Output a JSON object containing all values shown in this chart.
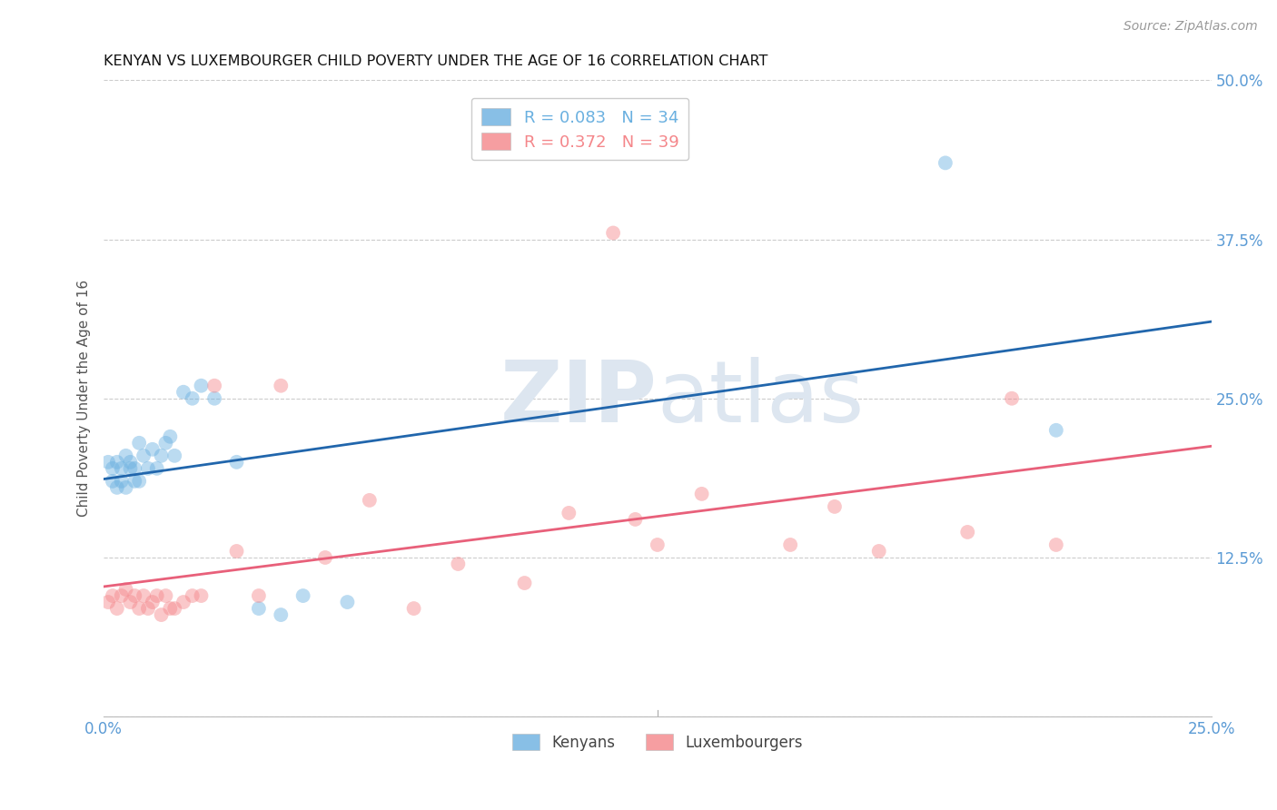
{
  "title": "KENYAN VS LUXEMBOURGER CHILD POVERTY UNDER THE AGE OF 16 CORRELATION CHART",
  "source": "Source: ZipAtlas.com",
  "ylabel": "Child Poverty Under the Age of 16",
  "xlim": [
    0.0,
    0.25
  ],
  "ylim": [
    0.0,
    0.5
  ],
  "xticks": [
    0.0,
    0.05,
    0.1,
    0.15,
    0.2,
    0.25
  ],
  "yticks": [
    0.0,
    0.125,
    0.25,
    0.375,
    0.5
  ],
  "ytick_labels": [
    "",
    "12.5%",
    "25.0%",
    "37.5%",
    "50.0%"
  ],
  "xtick_labels": [
    "0.0%",
    "",
    "",
    "",
    "",
    "25.0%"
  ],
  "legend_entries": [
    {
      "label": "R = 0.083   N = 34",
      "color": "#6ab0e0"
    },
    {
      "label": "R = 0.372   N = 39",
      "color": "#f4868a"
    }
  ],
  "kenyan_x": [
    0.001,
    0.002,
    0.002,
    0.003,
    0.003,
    0.004,
    0.004,
    0.005,
    0.005,
    0.006,
    0.006,
    0.007,
    0.007,
    0.008,
    0.008,
    0.009,
    0.01,
    0.011,
    0.012,
    0.013,
    0.014,
    0.015,
    0.016,
    0.018,
    0.02,
    0.022,
    0.025,
    0.03,
    0.035,
    0.04,
    0.045,
    0.055,
    0.19,
    0.215
  ],
  "kenyan_y": [
    0.2,
    0.195,
    0.185,
    0.2,
    0.18,
    0.185,
    0.195,
    0.18,
    0.205,
    0.195,
    0.2,
    0.195,
    0.185,
    0.185,
    0.215,
    0.205,
    0.195,
    0.21,
    0.195,
    0.205,
    0.215,
    0.22,
    0.205,
    0.255,
    0.25,
    0.26,
    0.25,
    0.2,
    0.085,
    0.08,
    0.095,
    0.09,
    0.435,
    0.225
  ],
  "luxembourger_x": [
    0.001,
    0.002,
    0.003,
    0.004,
    0.005,
    0.006,
    0.007,
    0.008,
    0.009,
    0.01,
    0.011,
    0.012,
    0.013,
    0.014,
    0.015,
    0.016,
    0.018,
    0.02,
    0.022,
    0.025,
    0.03,
    0.035,
    0.04,
    0.06,
    0.07,
    0.095,
    0.105,
    0.12,
    0.125,
    0.135,
    0.155,
    0.165,
    0.175,
    0.195,
    0.205,
    0.215,
    0.115,
    0.08,
    0.05
  ],
  "luxembourger_y": [
    0.09,
    0.095,
    0.085,
    0.095,
    0.1,
    0.09,
    0.095,
    0.085,
    0.095,
    0.085,
    0.09,
    0.095,
    0.08,
    0.095,
    0.085,
    0.085,
    0.09,
    0.095,
    0.095,
    0.26,
    0.13,
    0.095,
    0.26,
    0.17,
    0.085,
    0.105,
    0.16,
    0.155,
    0.135,
    0.175,
    0.135,
    0.165,
    0.13,
    0.145,
    0.25,
    0.135,
    0.38,
    0.12,
    0.125
  ],
  "kenyan_color": "#6ab0e0",
  "luxembourger_color": "#f4868a",
  "kenyan_line_color": "#2166ac",
  "luxembourger_line_color": "#e8607a",
  "marker_size": 130,
  "marker_alpha": 0.45,
  "background_color": "#ffffff",
  "grid_color": "#cccccc",
  "watermark_zip": "ZIP",
  "watermark_atlas": "atlas",
  "watermark_color": "#dde6f0",
  "watermark_fontsize": 68
}
